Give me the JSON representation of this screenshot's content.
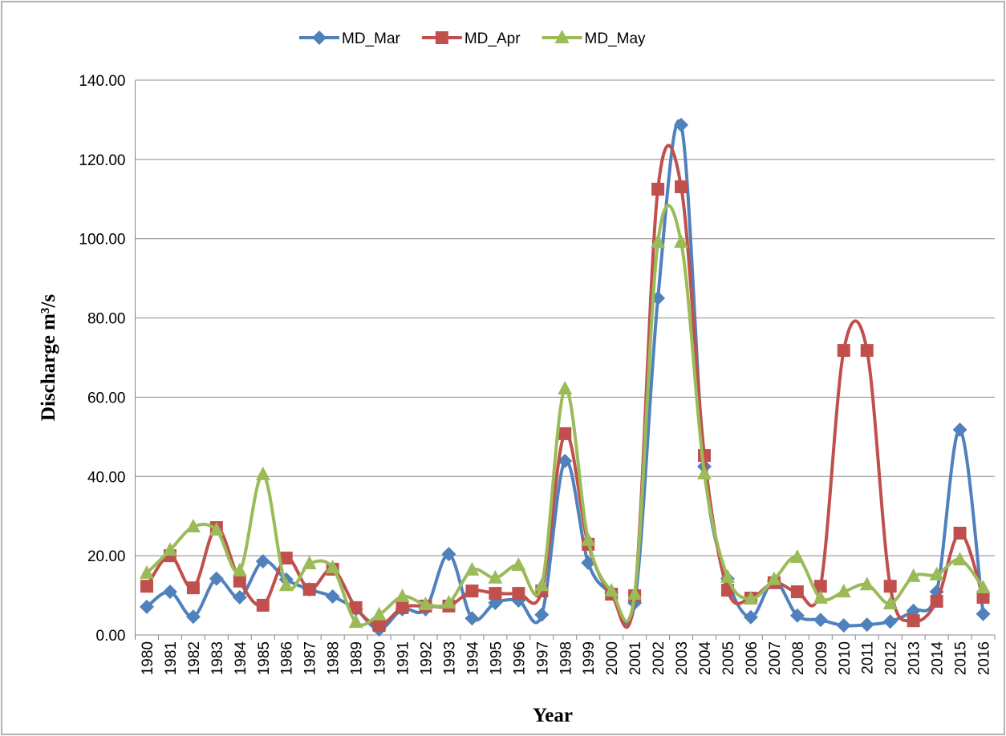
{
  "chart_data": {
    "type": "line",
    "x_label": "Year",
    "y_label": "Discharge m³/s",
    "categories": [
      "1980",
      "1981",
      "1982",
      "1983",
      "1984",
      "1985",
      "1986",
      "1987",
      "1988",
      "1989",
      "1990",
      "1991",
      "1992",
      "1993",
      "1994",
      "1995",
      "1996",
      "1997",
      "1998",
      "1999",
      "2000",
      "2001",
      "2002",
      "2003",
      "2004",
      "2005",
      "2006",
      "2007",
      "2008",
      "2009",
      "2010",
      "2011",
      "2012",
      "2013",
      "2014",
      "2015",
      "2016"
    ],
    "series": [
      {
        "name": "MD_Mar",
        "color": "#4f81bd",
        "marker": "diamond",
        "values": [
          7.1,
          10.9,
          4.6,
          14.2,
          9.5,
          18.6,
          14.0,
          11.5,
          9.7,
          6.5,
          1.4,
          6.5,
          6.5,
          20.4,
          4.2,
          8.1,
          8.7,
          5.1,
          43.9,
          18.2,
          10.5,
          8.1,
          85.0,
          128.7,
          42.5,
          14.2,
          4.5,
          13.6,
          4.9,
          3.8,
          2.4,
          2.6,
          3.4,
          6.1,
          10.9,
          51.8,
          5.3
        ]
      },
      {
        "name": "MD_Apr",
        "color": "#c0504d",
        "marker": "square",
        "values": [
          12.3,
          20.0,
          11.9,
          27.1,
          13.6,
          7.5,
          19.4,
          11.5,
          16.6,
          6.9,
          2.4,
          6.9,
          7.3,
          7.3,
          11.1,
          10.5,
          10.5,
          11.1,
          50.8,
          22.9,
          10.3,
          9.9,
          112.5,
          113.1,
          45.3,
          11.3,
          9.3,
          13.2,
          10.9,
          12.3,
          71.8,
          71.8,
          12.3,
          3.6,
          8.5,
          25.7,
          9.5
        ]
      },
      {
        "name": "MD_May",
        "color": "#9bbb59",
        "marker": "triangle",
        "values": [
          15.6,
          21.4,
          27.3,
          26.5,
          16.2,
          40.5,
          12.5,
          18.0,
          17.0,
          3.2,
          5.1,
          9.7,
          7.7,
          8.1,
          16.4,
          14.4,
          17.6,
          12.5,
          62.1,
          23.9,
          11.1,
          10.3,
          99.1,
          99.1,
          40.7,
          14.6,
          9.1,
          14.0,
          19.6,
          9.3,
          10.9,
          12.7,
          7.9,
          14.8,
          15.2,
          19.0,
          11.9
        ]
      }
    ],
    "ylim": [
      0,
      140
    ],
    "yticks": [
      {
        "value": 0,
        "label": "0.00"
      },
      {
        "value": 20,
        "label": "20.00"
      },
      {
        "value": 40,
        "label": "40.00"
      },
      {
        "value": 60,
        "label": "60.00"
      },
      {
        "value": 80,
        "label": "80.00"
      },
      {
        "value": 100,
        "label": "100.00"
      },
      {
        "value": 120,
        "label": "120.00"
      },
      {
        "value": 140,
        "label": "140.00"
      }
    ],
    "grid": true,
    "smooth": true,
    "legend": "top"
  }
}
